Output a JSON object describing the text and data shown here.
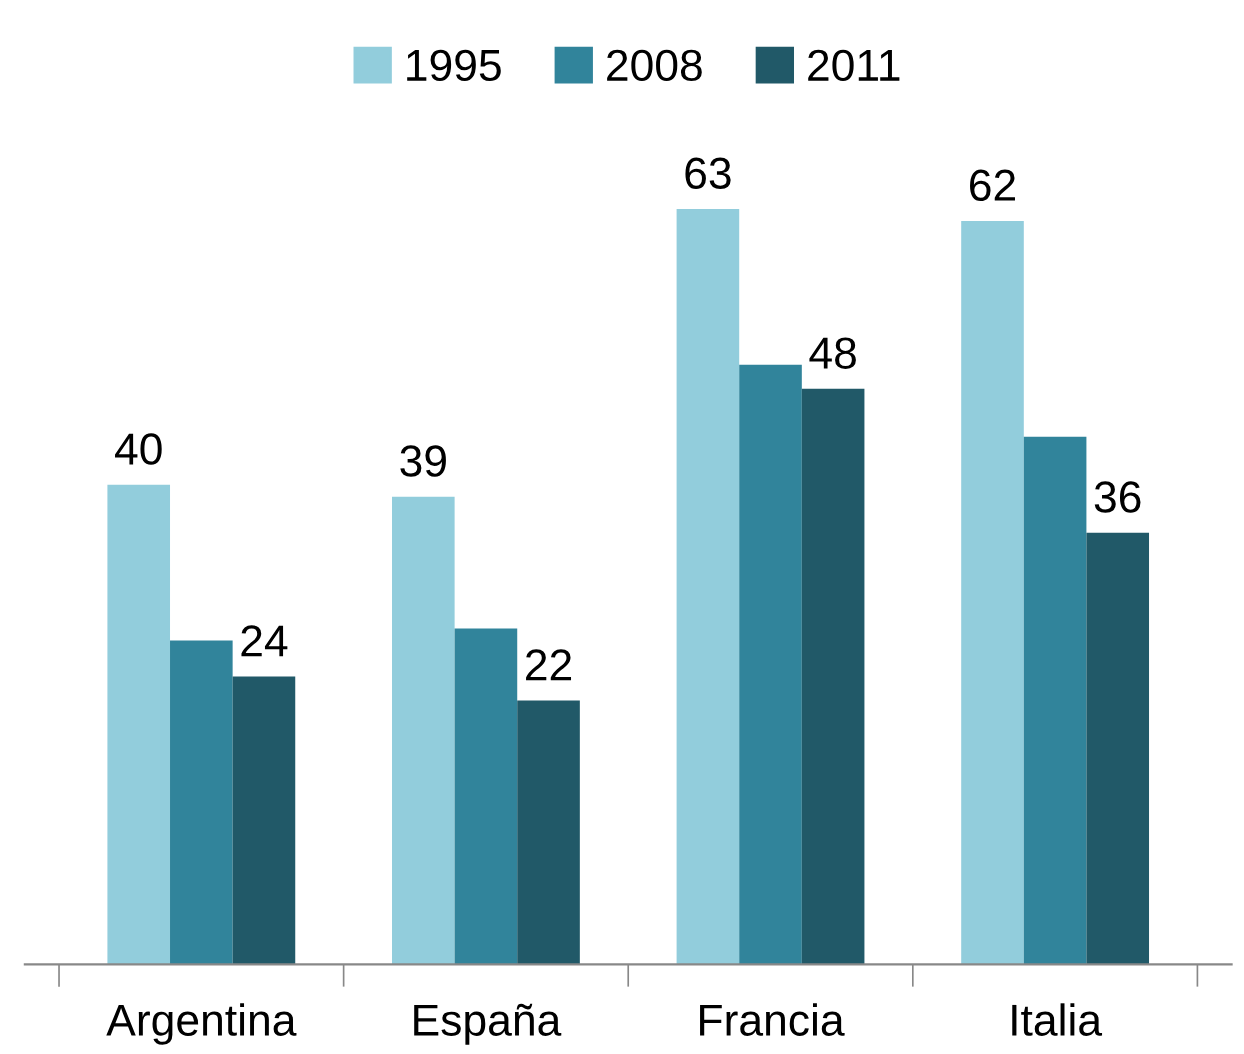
{
  "chart_data": {
    "type": "bar",
    "categories": [
      "Argentina",
      "España",
      "Francia",
      "Italia"
    ],
    "series": [
      {
        "name": "1995",
        "color": "#92cddc",
        "values": [
          40,
          39,
          63,
          62
        ],
        "value_labels": [
          "40",
          "39",
          "63",
          "62"
        ]
      },
      {
        "name": "2008",
        "color": "#31849b",
        "values": [
          27,
          28,
          50,
          44
        ],
        "value_labels": [
          null,
          null,
          null,
          null
        ]
      },
      {
        "name": "2011",
        "color": "#215968",
        "values": [
          24,
          22,
          48,
          36
        ],
        "value_labels": [
          "24",
          "22",
          "48",
          "36"
        ]
      }
    ],
    "legend": "top",
    "grid": false,
    "tick_labels": "x"
  }
}
